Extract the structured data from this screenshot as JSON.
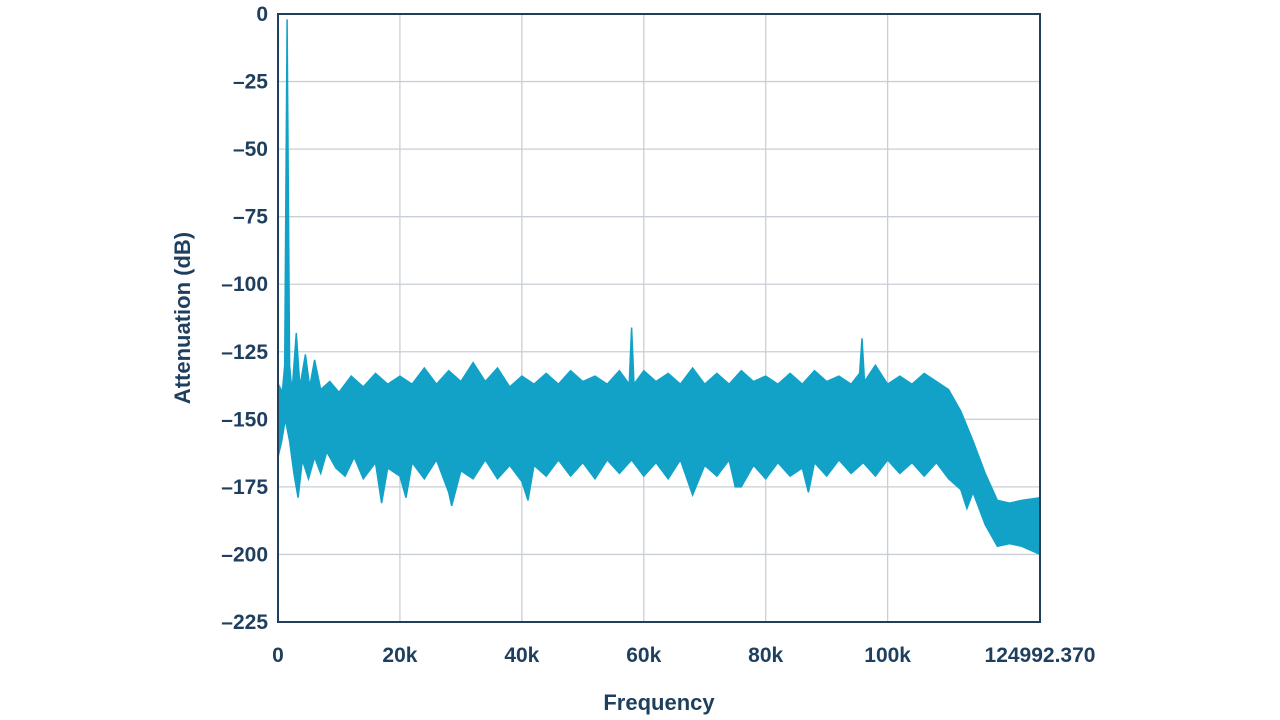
{
  "chart_data": {
    "type": "area",
    "title": "",
    "xlabel": "Frequency",
    "ylabel": "Attenuation (dB)",
    "xlim": [
      0,
      124992.37
    ],
    "ylim": [
      -225,
      0
    ],
    "x_ticks": [
      {
        "value": 0,
        "label": "0"
      },
      {
        "value": 20000,
        "label": "20k"
      },
      {
        "value": 40000,
        "label": "40k"
      },
      {
        "value": 60000,
        "label": "60k"
      },
      {
        "value": 80000,
        "label": "80k"
      },
      {
        "value": 100000,
        "label": "100k"
      },
      {
        "value": 124992.37,
        "label": "124992.370"
      }
    ],
    "y_ticks": [
      {
        "value": 0,
        "label": "0"
      },
      {
        "value": -25,
        "label": "–25"
      },
      {
        "value": -50,
        "label": "–50"
      },
      {
        "value": -75,
        "label": "–75"
      },
      {
        "value": -100,
        "label": "–100"
      },
      {
        "value": -125,
        "label": "–125"
      },
      {
        "value": -150,
        "label": "–150"
      },
      {
        "value": -175,
        "label": "–175"
      },
      {
        "value": -200,
        "label": "–200"
      },
      {
        "value": -225,
        "label": "–225"
      }
    ],
    "grid": true,
    "legend": "none",
    "series_color": "#12a2c8",
    "series": [
      {
        "upper": [
          [
            0,
            -147
          ],
          [
            300,
            -138
          ],
          [
            700,
            -140
          ],
          [
            1100,
            -130
          ],
          [
            1500,
            -2
          ],
          [
            1900,
            -130
          ],
          [
            2300,
            -140
          ],
          [
            3000,
            -118
          ],
          [
            3600,
            -138
          ],
          [
            4500,
            -126
          ],
          [
            5200,
            -138
          ],
          [
            6000,
            -128
          ],
          [
            7000,
            -139
          ],
          [
            8500,
            -136
          ],
          [
            10000,
            -140
          ],
          [
            12000,
            -134
          ],
          [
            14000,
            -138
          ],
          [
            16000,
            -133
          ],
          [
            18000,
            -137
          ],
          [
            20000,
            -134
          ],
          [
            22000,
            -137
          ],
          [
            24000,
            -131
          ],
          [
            26000,
            -137
          ],
          [
            28000,
            -132
          ],
          [
            30000,
            -136
          ],
          [
            32000,
            -129
          ],
          [
            34000,
            -136
          ],
          [
            36000,
            -131
          ],
          [
            38000,
            -138
          ],
          [
            40000,
            -134
          ],
          [
            42000,
            -137
          ],
          [
            44000,
            -133
          ],
          [
            46000,
            -137
          ],
          [
            48000,
            -132
          ],
          [
            50000,
            -136
          ],
          [
            52000,
            -134
          ],
          [
            54000,
            -137
          ],
          [
            56000,
            -132
          ],
          [
            57600,
            -137
          ],
          [
            58000,
            -116
          ],
          [
            58400,
            -137
          ],
          [
            60000,
            -132
          ],
          [
            62000,
            -136
          ],
          [
            64000,
            -133
          ],
          [
            66000,
            -137
          ],
          [
            68000,
            -131
          ],
          [
            70000,
            -137
          ],
          [
            72000,
            -133
          ],
          [
            74000,
            -137
          ],
          [
            76000,
            -132
          ],
          [
            78000,
            -136
          ],
          [
            80000,
            -134
          ],
          [
            82000,
            -137
          ],
          [
            84000,
            -133
          ],
          [
            86000,
            -137
          ],
          [
            88000,
            -132
          ],
          [
            90000,
            -136
          ],
          [
            92000,
            -134
          ],
          [
            94000,
            -137
          ],
          [
            95400,
            -133
          ],
          [
            95800,
            -120
          ],
          [
            96200,
            -136
          ],
          [
            98000,
            -130
          ],
          [
            100000,
            -137
          ],
          [
            102000,
            -134
          ],
          [
            104000,
            -137
          ],
          [
            106000,
            -133
          ],
          [
            108000,
            -136
          ],
          [
            110000,
            -139
          ],
          [
            112000,
            -147
          ],
          [
            114000,
            -158
          ],
          [
            116000,
            -170
          ],
          [
            118000,
            -180
          ],
          [
            120000,
            -181
          ],
          [
            122000,
            -180
          ],
          [
            124992.37,
            -179
          ]
        ],
        "lower": [
          [
            0,
            -164
          ],
          [
            600,
            -158
          ],
          [
            1200,
            -150
          ],
          [
            1900,
            -158
          ],
          [
            2600,
            -170
          ],
          [
            3300,
            -179
          ],
          [
            4000,
            -165
          ],
          [
            5000,
            -172
          ],
          [
            6000,
            -164
          ],
          [
            7000,
            -170
          ],
          [
            8000,
            -162
          ],
          [
            9500,
            -168
          ],
          [
            11000,
            -171
          ],
          [
            12500,
            -164
          ],
          [
            14000,
            -172
          ],
          [
            16000,
            -166
          ],
          [
            17000,
            -181
          ],
          [
            18000,
            -168
          ],
          [
            20000,
            -171
          ],
          [
            21000,
            -179
          ],
          [
            22000,
            -166
          ],
          [
            24000,
            -172
          ],
          [
            26000,
            -165
          ],
          [
            28000,
            -177
          ],
          [
            28500,
            -182
          ],
          [
            30000,
            -169
          ],
          [
            32000,
            -172
          ],
          [
            34000,
            -165
          ],
          [
            36000,
            -172
          ],
          [
            38000,
            -167
          ],
          [
            40000,
            -173
          ],
          [
            41000,
            -180
          ],
          [
            42000,
            -167
          ],
          [
            44000,
            -171
          ],
          [
            46000,
            -165
          ],
          [
            48000,
            -171
          ],
          [
            50000,
            -166
          ],
          [
            52000,
            -172
          ],
          [
            54000,
            -165
          ],
          [
            56000,
            -170
          ],
          [
            58000,
            -165
          ],
          [
            60000,
            -171
          ],
          [
            62000,
            -166
          ],
          [
            64000,
            -172
          ],
          [
            66000,
            -165
          ],
          [
            68000,
            -178
          ],
          [
            70000,
            -167
          ],
          [
            72000,
            -171
          ],
          [
            74000,
            -165
          ],
          [
            75000,
            -175
          ],
          [
            76000,
            -175
          ],
          [
            78000,
            -167
          ],
          [
            80000,
            -172
          ],
          [
            82000,
            -166
          ],
          [
            84000,
            -171
          ],
          [
            86000,
            -168
          ],
          [
            87000,
            -177
          ],
          [
            88000,
            -166
          ],
          [
            90000,
            -171
          ],
          [
            92000,
            -165
          ],
          [
            94000,
            -170
          ],
          [
            96000,
            -166
          ],
          [
            98000,
            -171
          ],
          [
            100000,
            -165
          ],
          [
            102000,
            -170
          ],
          [
            104000,
            -166
          ],
          [
            106000,
            -171
          ],
          [
            108000,
            -166
          ],
          [
            110000,
            -172
          ],
          [
            112000,
            -176
          ],
          [
            113000,
            -183
          ],
          [
            114000,
            -177
          ],
          [
            116000,
            -189
          ],
          [
            118000,
            -197
          ],
          [
            120000,
            -196
          ],
          [
            122000,
            -197
          ],
          [
            124992.37,
            -200
          ]
        ]
      }
    ]
  }
}
